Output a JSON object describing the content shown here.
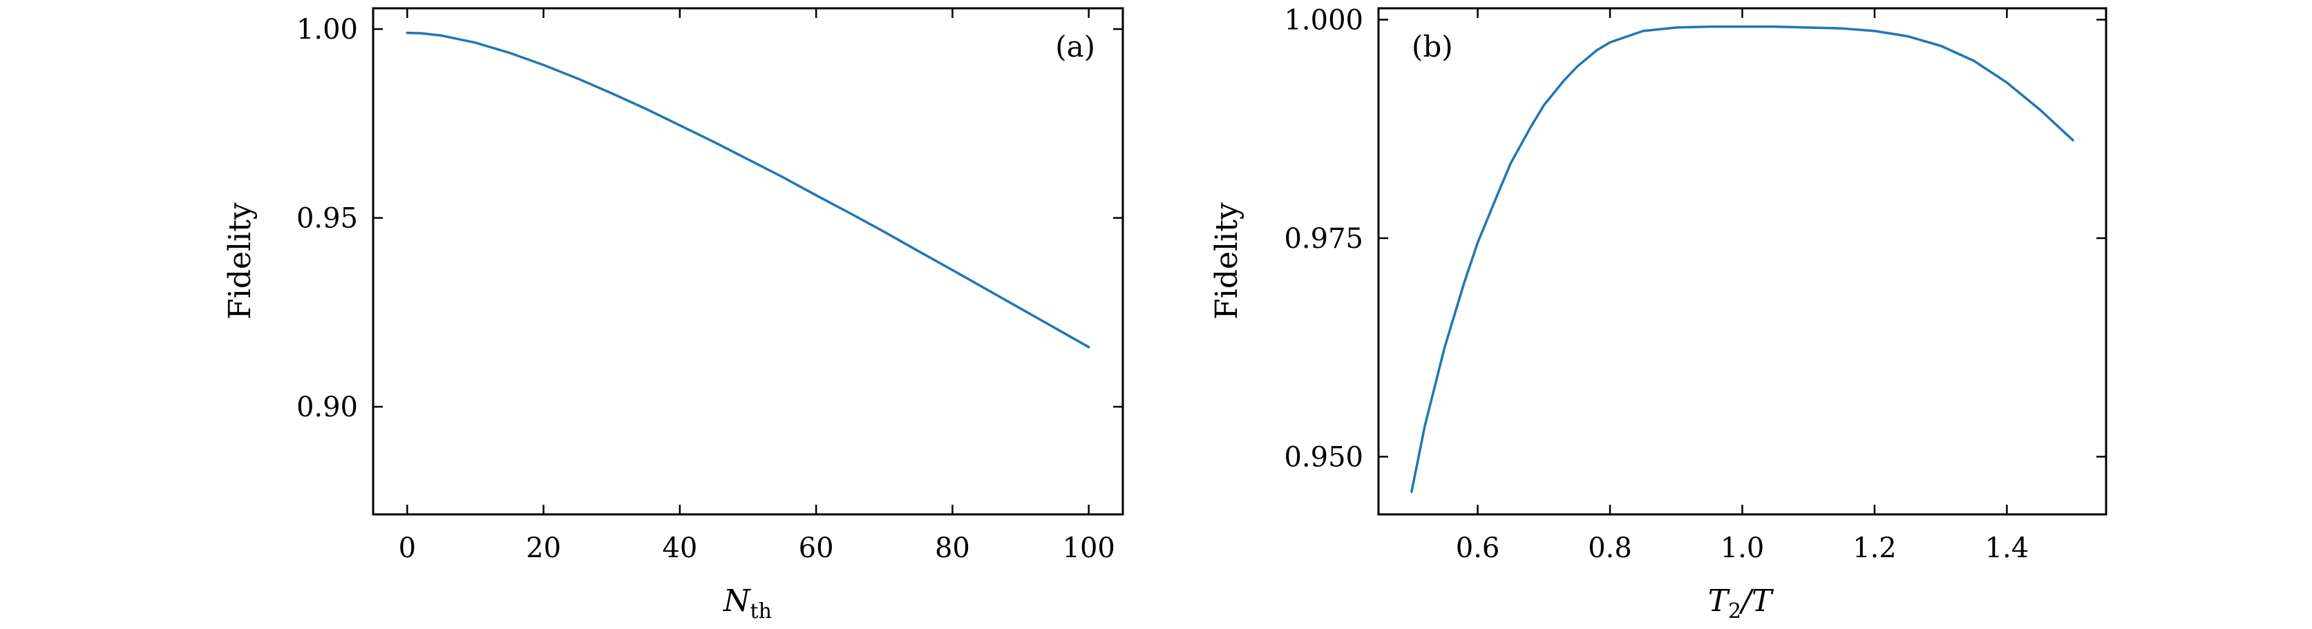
{
  "chart_data": [
    {
      "type": "line",
      "panel_label": "(a)",
      "xlabel": {
        "base": "N",
        "sub": "th"
      },
      "ylabel": "Fidelity",
      "xlim": [
        -5,
        105
      ],
      "ylim": [
        0.8715,
        1.0055
      ],
      "xticks": [
        0,
        20,
        40,
        60,
        80,
        100
      ],
      "xtick_labels": [
        "0",
        "20",
        "40",
        "60",
        "80",
        "100"
      ],
      "yticks": [
        0.9,
        0.95,
        1.0
      ],
      "ytick_labels": [
        "0.90",
        "0.95",
        "1.00"
      ],
      "grid": false,
      "series": [
        {
          "color": "#1f77b4",
          "x": [
            0,
            2,
            5,
            10,
            15,
            20,
            25,
            30,
            35,
            40,
            45,
            50,
            55,
            60,
            65,
            70,
            75,
            80,
            85,
            90,
            95,
            100
          ],
          "y": [
            0.999,
            0.9989,
            0.9983,
            0.9964,
            0.9937,
            0.9905,
            0.9869,
            0.983,
            0.9789,
            0.9745,
            0.9701,
            0.9655,
            0.9609,
            0.956,
            0.9512,
            0.9463,
            0.9412,
            0.9362,
            0.9311,
            0.926,
            0.9209,
            0.9158
          ]
        }
      ]
    },
    {
      "type": "line",
      "panel_label": "(b)",
      "xlabel": {
        "base": "T",
        "sub": "2",
        "tail": "/T"
      },
      "ylabel": "Fidelity",
      "xlim": [
        0.45,
        1.55
      ],
      "ylim": [
        0.9434,
        1.0013
      ],
      "xticks": [
        0.6,
        0.8,
        1.0,
        1.2,
        1.4
      ],
      "xtick_labels": [
        "0.6",
        "0.8",
        "1.0",
        "1.2",
        "1.4"
      ],
      "yticks": [
        0.95,
        0.975,
        1.0
      ],
      "ytick_labels": [
        "0.950",
        "0.975",
        "1.000"
      ],
      "grid": false,
      "series": [
        {
          "color": "#1f77b4",
          "x": [
            0.5,
            0.52,
            0.55,
            0.58,
            0.6,
            0.63,
            0.65,
            0.68,
            0.7,
            0.73,
            0.75,
            0.78,
            0.8,
            0.85,
            0.9,
            0.95,
            1.0,
            1.05,
            1.1,
            1.15,
            1.2,
            1.25,
            1.3,
            1.35,
            1.4,
            1.45,
            1.5
          ],
          "y": [
            0.946,
            0.9535,
            0.9625,
            0.97,
            0.9745,
            0.98,
            0.9836,
            0.9877,
            0.9902,
            0.993,
            0.9946,
            0.9965,
            0.9974,
            0.9987,
            0.9991,
            0.9992,
            0.9992,
            0.9992,
            0.9991,
            0.999,
            0.9987,
            0.9981,
            0.997,
            0.9953,
            0.9928,
            0.9897,
            0.9862
          ]
        }
      ]
    }
  ]
}
